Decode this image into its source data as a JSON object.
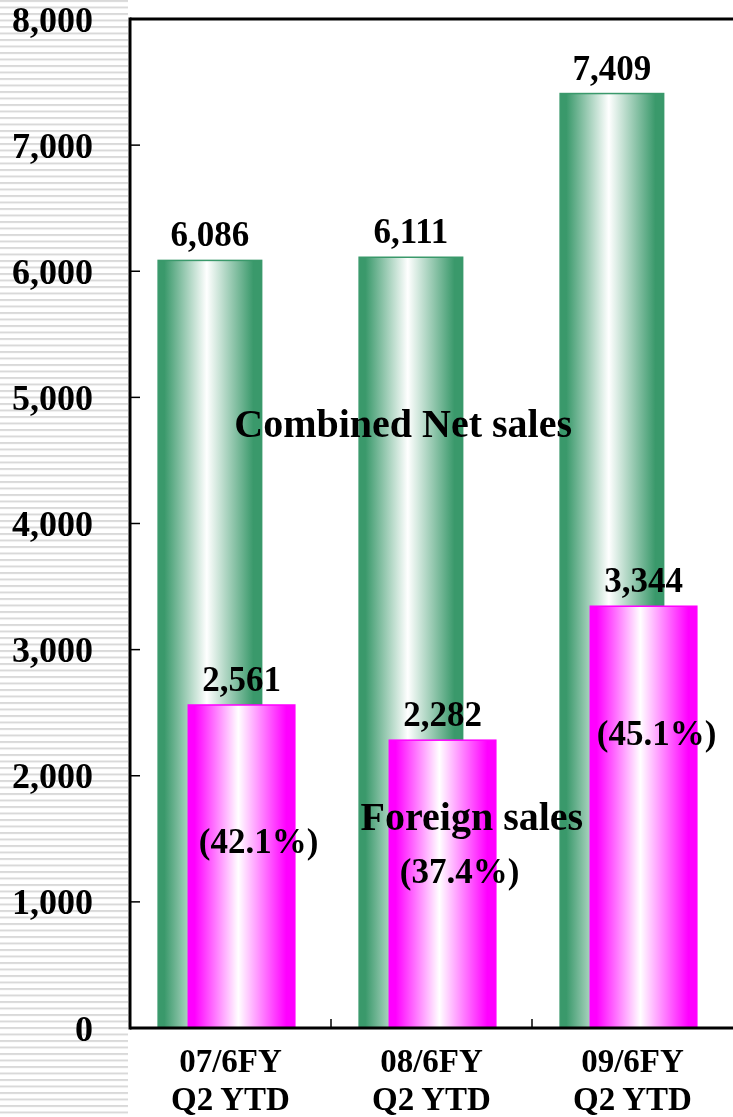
{
  "chart_data": {
    "type": "bar",
    "categories": [
      "07/6FY\nQ2 YTD",
      "08/6FY\nQ2 YTD",
      "09/6FY\nQ2 YTD"
    ],
    "series": [
      {
        "name": "Combined Net sales",
        "color": "#3a996b",
        "values": [
          6086,
          6111,
          7409
        ],
        "value_labels": [
          "6,086",
          "6,111",
          "7,409"
        ]
      },
      {
        "name": "Foreign sales",
        "color": "#ff00ff",
        "values": [
          2561,
          2282,
          3344
        ],
        "value_labels": [
          "2,561",
          "2,282",
          "3,344"
        ]
      }
    ],
    "ylim": [
      0,
      8000
    ],
    "yticks": [
      {
        "value": 0,
        "label": "0"
      },
      {
        "value": 1000,
        "label": "1,000"
      },
      {
        "value": 2000,
        "label": "2,000"
      },
      {
        "value": 3000,
        "label": "3,000"
      },
      {
        "value": 4000,
        "label": "4,000"
      },
      {
        "value": 5000,
        "label": "5,000"
      },
      {
        "value": 6000,
        "label": "6,000"
      },
      {
        "value": 7000,
        "label": "7,000"
      },
      {
        "value": 8000,
        "label": "8,000"
      }
    ],
    "annotations": [
      "(42.1%)",
      "(37.4%)",
      "(45.1%)"
    ]
  }
}
